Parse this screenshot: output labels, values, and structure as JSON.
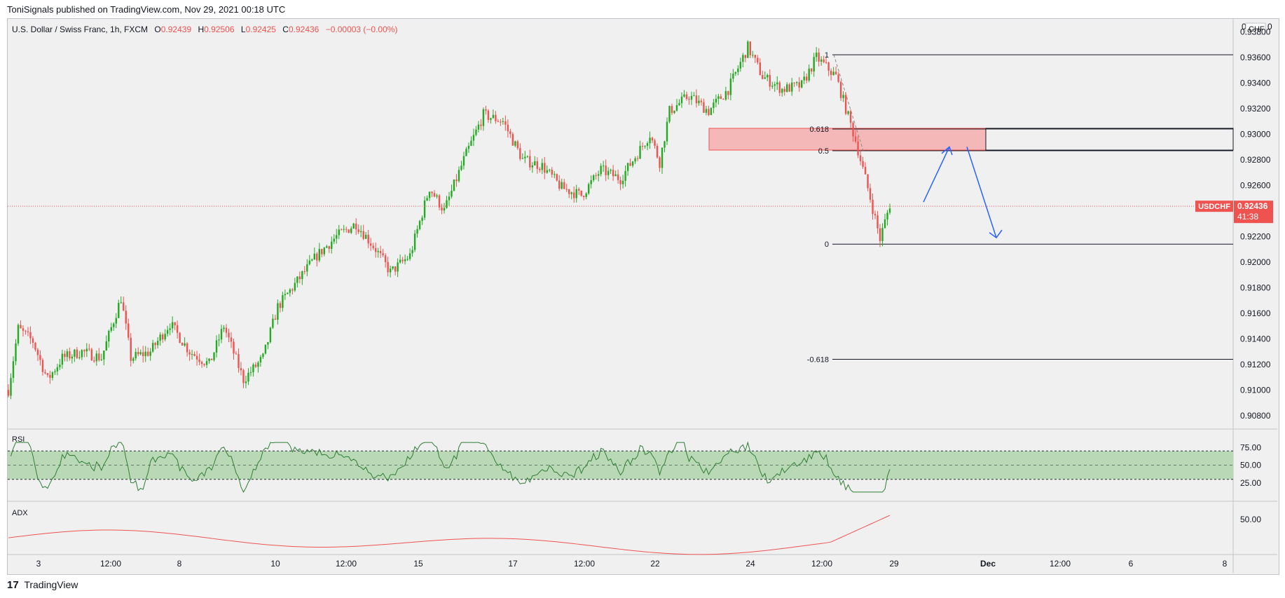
{
  "header": {
    "publisher": "ToniSignals published on TradingView.com, Nov 29, 2021 00:18 UTC"
  },
  "legend": {
    "symbol_desc": "U.S. Dollar / Swiss Franc, 1h, FXCM",
    "open_label": "O",
    "open": "0.92439",
    "high_label": "H",
    "high": "0.92506",
    "low_label": "L",
    "low": "0.92425",
    "close_label": "C",
    "close": "0.92436",
    "change": "−0.00003 (−0.00%)"
  },
  "price_axis": {
    "currency": "CHF",
    "top_label": "0",
    "ticks": [
      "0.93800",
      "0.93600",
      "0.93400",
      "0.93200",
      "0.93000",
      "0.92800",
      "0.92600",
      "0.92400",
      "0.92200",
      "0.92000",
      "0.91800",
      "0.91600",
      "0.91400",
      "0.91200",
      "0.91000",
      "0.90800"
    ],
    "last_symbol": "USDCHF",
    "last_price": "0.92436",
    "countdown": "41:38"
  },
  "time_axis": {
    "ticks": [
      "3",
      "12:00",
      "8",
      "10",
      "12:00",
      "15",
      "17",
      "12:00",
      "22",
      "24",
      "12:00",
      "29",
      "Dec",
      "12:00",
      "6",
      "8"
    ]
  },
  "fib": {
    "levels": [
      {
        "label": "1",
        "price": 0.9362
      },
      {
        "label": "0.618",
        "price": 0.9304
      },
      {
        "label": "0.5",
        "price": 0.9287
      },
      {
        "label": "0",
        "price": 0.9214
      },
      {
        "label": "-0.618",
        "price": 0.9124
      }
    ]
  },
  "zone": {
    "top": 0.93045,
    "bottom": 0.92875,
    "color": "#f4b8b8"
  },
  "rsi": {
    "title": "RSI",
    "ticks": [
      "75.00",
      "50.00",
      "25.00"
    ],
    "upper": 70,
    "mid": 50,
    "lower": 30
  },
  "adx": {
    "title": "ADX",
    "ticks": [
      "50.00"
    ]
  },
  "footer": {
    "brand": "TradingView",
    "logo": "17"
  },
  "colors": {
    "up": "#26a69a",
    "bull": "#22ab22",
    "down": "#ef5350",
    "rsi_line": "#2e7d32",
    "rsi_band": "#b9d9b6",
    "adx_line": "#ef5350",
    "arrow": "#2962ff"
  },
  "chart_data": {
    "type": "candlestick",
    "ylim": [
      0.907,
      0.939
    ],
    "key_points_x": [
      "3",
      "8",
      "10",
      "15",
      "17",
      "22",
      "24",
      "29"
    ],
    "price_path": [
      {
        "t": 0,
        "p": 0.91
      },
      {
        "t": 4,
        "p": 0.9148
      },
      {
        "t": 10,
        "p": 0.9138
      },
      {
        "t": 16,
        "p": 0.9108
      },
      {
        "t": 22,
        "p": 0.9125
      },
      {
        "t": 30,
        "p": 0.913
      },
      {
        "t": 38,
        "p": 0.9125
      },
      {
        "t": 46,
        "p": 0.9172
      },
      {
        "t": 50,
        "p": 0.9125
      },
      {
        "t": 58,
        "p": 0.913
      },
      {
        "t": 66,
        "p": 0.9152
      },
      {
        "t": 74,
        "p": 0.913
      },
      {
        "t": 82,
        "p": 0.912
      },
      {
        "t": 88,
        "p": 0.915
      },
      {
        "t": 96,
        "p": 0.9108
      },
      {
        "t": 104,
        "p": 0.9125
      },
      {
        "t": 110,
        "p": 0.9165
      },
      {
        "t": 118,
        "p": 0.9185
      },
      {
        "t": 126,
        "p": 0.9205
      },
      {
        "t": 134,
        "p": 0.922
      },
      {
        "t": 142,
        "p": 0.923
      },
      {
        "t": 150,
        "p": 0.921
      },
      {
        "t": 156,
        "p": 0.9192
      },
      {
        "t": 164,
        "p": 0.9205
      },
      {
        "t": 172,
        "p": 0.9258
      },
      {
        "t": 178,
        "p": 0.924
      },
      {
        "t": 186,
        "p": 0.928
      },
      {
        "t": 194,
        "p": 0.9315
      },
      {
        "t": 202,
        "p": 0.931
      },
      {
        "t": 210,
        "p": 0.928
      },
      {
        "t": 218,
        "p": 0.9275
      },
      {
        "t": 226,
        "p": 0.9258
      },
      {
        "t": 234,
        "p": 0.9252
      },
      {
        "t": 242,
        "p": 0.9272
      },
      {
        "t": 250,
        "p": 0.9265
      },
      {
        "t": 258,
        "p": 0.9288
      },
      {
        "t": 262,
        "p": 0.93
      },
      {
        "t": 266,
        "p": 0.9278
      },
      {
        "t": 270,
        "p": 0.9318
      },
      {
        "t": 278,
        "p": 0.933
      },
      {
        "t": 286,
        "p": 0.9318
      },
      {
        "t": 294,
        "p": 0.9335
      },
      {
        "t": 302,
        "p": 0.9368
      },
      {
        "t": 308,
        "p": 0.9345
      },
      {
        "t": 316,
        "p": 0.9335
      },
      {
        "t": 324,
        "p": 0.9338
      },
      {
        "t": 330,
        "p": 0.936
      },
      {
        "t": 338,
        "p": 0.9345
      },
      {
        "t": 346,
        "p": 0.9295
      },
      {
        "t": 352,
        "p": 0.925
      },
      {
        "t": 356,
        "p": 0.9218
      },
      {
        "t": 360,
        "p": 0.9245
      }
    ]
  }
}
